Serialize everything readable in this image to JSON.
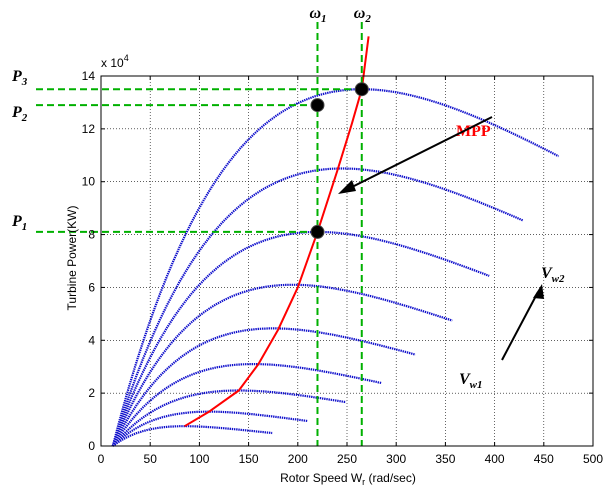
{
  "chart_data": {
    "type": "line",
    "xlabel": "Rotor Speed W",
    "xlabel_sub": "r",
    "xlabel_unit": " (rad/sec)",
    "ylabel": "Turbine Power(KW)",
    "y_multiplier_label": "x 10",
    "y_multiplier_exp": "4",
    "xlim": [
      0,
      500
    ],
    "ylim": [
      0,
      14
    ],
    "xticks": [
      "0",
      "50",
      "100",
      "150",
      "200",
      "250",
      "300",
      "350",
      "400",
      "450",
      "500"
    ],
    "yticks": [
      "0",
      "2",
      "4",
      "6",
      "8",
      "10",
      "12",
      "14"
    ],
    "grid": true,
    "series": [
      {
        "peak_x": 85,
        "peak_y": 0.75,
        "end_x": 175
      },
      {
        "peak_x": 110,
        "peak_y": 1.3,
        "end_x": 210
      },
      {
        "peak_x": 140,
        "peak_y": 2.1,
        "end_x": 250
      },
      {
        "peak_x": 155,
        "peak_y": 3.1,
        "end_x": 285
      },
      {
        "peak_x": 175,
        "peak_y": 4.45,
        "end_x": 320
      },
      {
        "peak_x": 195,
        "peak_y": 6.1,
        "end_x": 358
      },
      {
        "peak_x": 220,
        "peak_y": 8.1,
        "end_x": 395
      },
      {
        "peak_x": 245,
        "peak_y": 10.5,
        "end_x": 430
      },
      {
        "peak_x": 265,
        "peak_y": 13.5,
        "end_x": 465
      }
    ],
    "mpp_curve": {
      "name": "MPP",
      "x": [
        85,
        110,
        140,
        160,
        180,
        200,
        220,
        240,
        255,
        265,
        272
      ],
      "y": [
        0.75,
        1.3,
        2.1,
        3.1,
        4.4,
        6.0,
        8.1,
        10.4,
        12.2,
        13.5,
        15.5
      ]
    },
    "operating_points": [
      {
        "x": 220,
        "y": 8.1
      },
      {
        "x": 220,
        "y": 12.9
      },
      {
        "x": 265,
        "y": 13.5
      }
    ],
    "reference_lines": {
      "vertical": [
        {
          "label": "ω",
          "sub": "1",
          "x": 220
        },
        {
          "label": "ω",
          "sub": "2",
          "x": 265
        }
      ],
      "horizontal": [
        {
          "label": "P",
          "sub": "1",
          "y": 8.1
        },
        {
          "label": "P",
          "sub": "2",
          "y": 12.9
        },
        {
          "label": "P",
          "sub": "3",
          "y": 13.5
        }
      ]
    },
    "annotations": {
      "mpp": "MPP",
      "vw2": {
        "label": "V",
        "sub": "w2"
      },
      "vw1": {
        "label": "V",
        "sub": "w1"
      }
    },
    "colors": {
      "curves": "#1010cc",
      "mpp": "#ff0000",
      "reference": "#00b000",
      "grid": "#000000",
      "points": "#000000"
    }
  }
}
